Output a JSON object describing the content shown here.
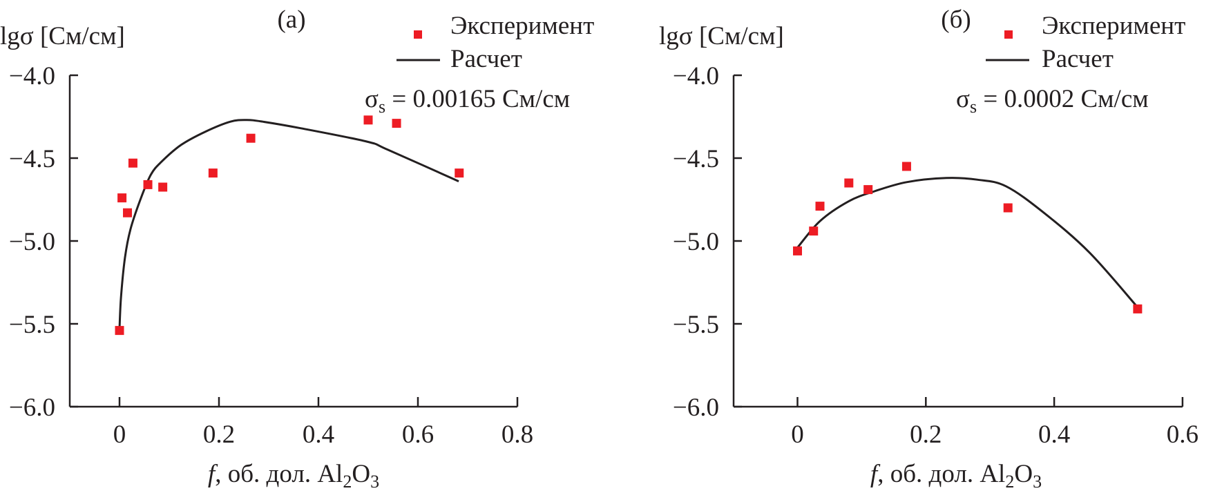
{
  "chart_data": [
    {
      "panel": "(а)",
      "type": "scatter",
      "ylabel": "lgσ [См/см]",
      "xlabel_parts": {
        "italic": "f",
        "text": ", об. дол. Al",
        "sub1": "2",
        "text2": "O",
        "sub2": "3"
      },
      "xlim": [
        -0.105,
        0.8
      ],
      "ylim": [
        -6.0,
        -4.0
      ],
      "xticks": [
        0,
        0.2,
        0.4,
        0.6,
        0.8
      ],
      "xtick_labels": [
        "0",
        "0.2",
        "0.4",
        "0.6",
        "0.8"
      ],
      "yticks": [
        -4.0,
        -4.5,
        -5.0,
        -5.5,
        -6.0
      ],
      "ytick_labels": [
        "−4.0",
        "−4.5",
        "−5.0",
        "−5.5",
        "−6.0"
      ],
      "legend": {
        "placement": "top-right",
        "experiment": "Эксперимент",
        "calc": "Расчет"
      },
      "annotation": {
        "sigma": "σ",
        "sub": "s",
        "value": " = 0.00165 См/см"
      },
      "series": [
        {
          "name": "Эксперимент",
          "kind": "points",
          "x": [
            0,
            0.005,
            0.016,
            0.027,
            0.057,
            0.087,
            0.188,
            0.264,
            0.5,
            0.557,
            0.683
          ],
          "y": [
            -5.54,
            -4.74,
            -4.83,
            -4.53,
            -4.66,
            -4.675,
            -4.59,
            -4.38,
            -4.27,
            -4.29,
            -4.59
          ]
        },
        {
          "name": "Расчет",
          "kind": "line",
          "x": [
            0,
            0.003,
            0.011,
            0.022,
            0.042,
            0.063,
            0.085,
            0.124,
            0.173,
            0.223,
            0.256,
            0.288,
            0.365,
            0.497,
            0.54,
            0.682
          ],
          "y": [
            -5.53,
            -5.34,
            -5.1,
            -4.93,
            -4.75,
            -4.6,
            -4.52,
            -4.42,
            -4.34,
            -4.28,
            -4.27,
            -4.28,
            -4.32,
            -4.4,
            -4.45,
            -4.64
          ]
        }
      ]
    },
    {
      "panel": "(б)",
      "type": "scatter",
      "ylabel": "lgσ [См/см]",
      "xlabel_parts": {
        "italic": "f",
        "text": ", об. дол. Al",
        "sub1": "2",
        "text2": "O",
        "sub2": "3"
      },
      "xlim": [
        -0.099,
        0.6
      ],
      "ylim": [
        -6.0,
        -4.0
      ],
      "xticks": [
        0,
        0.2,
        0.4,
        0.6
      ],
      "xtick_labels": [
        "0",
        "0.2",
        "0.4",
        "0.6"
      ],
      "yticks": [
        -4.0,
        -4.5,
        -5.0,
        -5.5,
        -6.0
      ],
      "ytick_labels": [
        "−4.0",
        "−4.5",
        "−5.0",
        "−5.5",
        "−6.0"
      ],
      "legend": {
        "placement": "top-right",
        "experiment": "Эксперимент",
        "calc": "Расчет"
      },
      "annotation": {
        "sigma": "σ",
        "sub": "s",
        "value": " = 0.0002 См/см"
      },
      "series": [
        {
          "name": "Эксперимент",
          "kind": "points",
          "x": [
            0,
            0.025,
            0.035,
            0.08,
            0.11,
            0.17,
            0.328,
            0.53
          ],
          "y": [
            -5.06,
            -4.94,
            -4.79,
            -4.65,
            -4.69,
            -4.55,
            -4.8,
            -5.41
          ]
        },
        {
          "name": "Расчет",
          "kind": "line",
          "x": [
            0,
            0.035,
            0.08,
            0.12,
            0.17,
            0.232,
            0.28,
            0.325,
            0.384,
            0.455,
            0.53
          ],
          "y": [
            -5.04,
            -4.88,
            -4.76,
            -4.7,
            -4.645,
            -4.62,
            -4.63,
            -4.67,
            -4.83,
            -5.07,
            -5.4
          ]
        }
      ]
    }
  ],
  "colors": {
    "experiment": "#ED1C24",
    "calc": "#231F20",
    "axis": "#231F20"
  }
}
